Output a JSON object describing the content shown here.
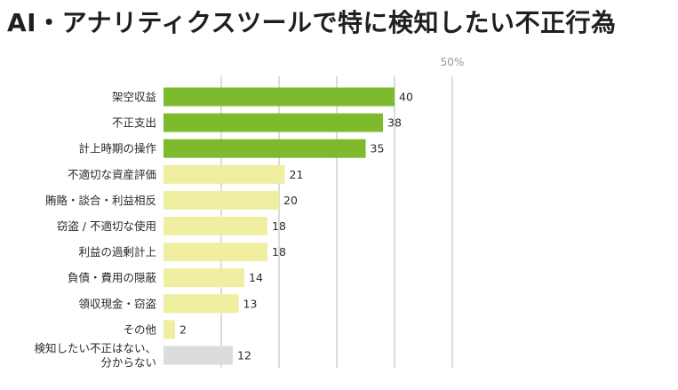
{
  "chart_data": {
    "type": "bar",
    "orientation": "horizontal",
    "title": "AI・アナリティクスツールで特に検知したい不正行為",
    "unit": "%",
    "xlim": [
      0,
      50
    ],
    "grid": true,
    "ticks": [
      10,
      20,
      30,
      40,
      50
    ],
    "tick_labels": [
      "",
      "",
      "",
      "",
      "50%"
    ],
    "categories": [
      [
        "架空収益"
      ],
      [
        "不正支出"
      ],
      [
        "計上時期の操作"
      ],
      [
        "不適切な資産評価"
      ],
      [
        "賄賂・談合・利益相反"
      ],
      [
        "窃盗 / 不適切な使用"
      ],
      [
        "利益の過剰計上"
      ],
      [
        "負債・費用の隠蔽"
      ],
      [
        "領収現金・窃盗"
      ],
      [
        "その他"
      ],
      [
        "検知したい不正はない、",
        "分からない"
      ]
    ],
    "values": [
      40,
      38,
      35,
      21,
      20,
      18,
      18,
      14,
      13,
      2,
      12
    ],
    "colors": {
      "top": "#7dbb2d",
      "other": "#f0eea0",
      "none": "#dcdcdc"
    },
    "bar_color_groups": [
      "top",
      "top",
      "top",
      "other",
      "other",
      "other",
      "other",
      "other",
      "other",
      "other",
      "none"
    ]
  }
}
